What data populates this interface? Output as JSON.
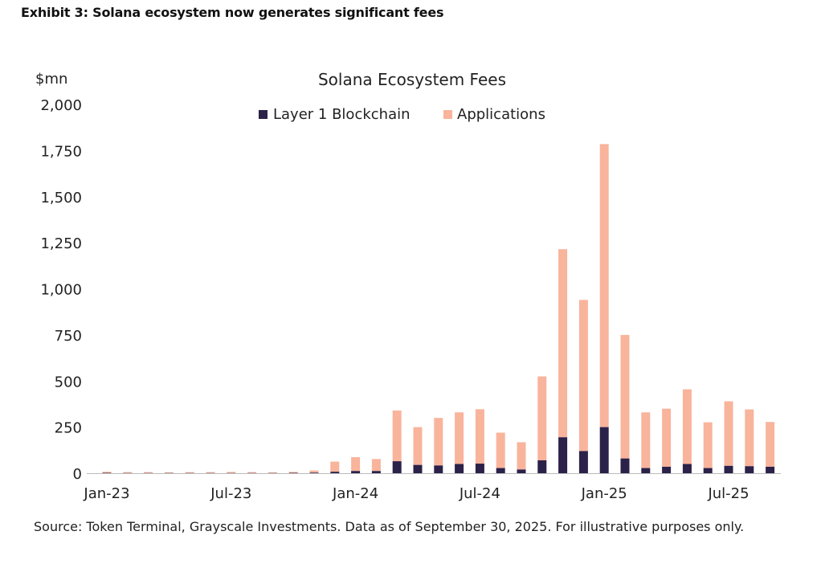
{
  "exhibit_title": "Exhibit 3: Solana ecosystem now generates significant fees",
  "footnote": "Source: Token Terminal, Grayscale Investments. Data as of September 30, 2025. For illustrative purposes only.",
  "colors": {
    "layer1": "#2b2149",
    "applications": "#f9b49c",
    "axis": "#bbbbbb"
  },
  "chart_data": {
    "type": "bar",
    "stacked": true,
    "title": "Solana Ecosystem Fees",
    "ylabel": "$mn",
    "xlabel": "",
    "ylim": [
      0,
      2000
    ],
    "yticks": [
      0,
      250,
      500,
      750,
      1000,
      1250,
      1500,
      1750,
      2000
    ],
    "ytick_labels": [
      "0",
      "250",
      "500",
      "750",
      "1,000",
      "1,250",
      "1,500",
      "1,750",
      "2,000"
    ],
    "xtick_labels": [
      {
        "label": "Jan-23",
        "index": 0
      },
      {
        "label": "Jul-23",
        "index": 6
      },
      {
        "label": "Jan-24",
        "index": 12
      },
      {
        "label": "Jul-24",
        "index": 18
      },
      {
        "label": "Jan-25",
        "index": 24
      },
      {
        "label": "Jul-25",
        "index": 30
      }
    ],
    "categories": [
      "Jan-23",
      "Feb-23",
      "Mar-23",
      "Apr-23",
      "May-23",
      "Jun-23",
      "Jul-23",
      "Aug-23",
      "Sep-23",
      "Oct-23",
      "Nov-23",
      "Dec-23",
      "Jan-24",
      "Feb-24",
      "Mar-24",
      "Apr-24",
      "May-24",
      "Jun-24",
      "Jul-24",
      "Aug-24",
      "Sep-24",
      "Oct-24",
      "Nov-24",
      "Dec-24",
      "Jan-25",
      "Feb-25",
      "Mar-25",
      "Apr-25",
      "May-25",
      "Jun-25",
      "Jul-25",
      "Aug-25",
      "Sep-25"
    ],
    "legend_position": "top-center",
    "series": [
      {
        "name": "Layer 1 Blockchain",
        "values": [
          2,
          1,
          1,
          1,
          1,
          1,
          1,
          1,
          1,
          2,
          3,
          8,
          12,
          12,
          65,
          45,
          42,
          50,
          52,
          28,
          20,
          70,
          195,
          120,
          250,
          80,
          28,
          35,
          50,
          28,
          40,
          38,
          35
        ]
      },
      {
        "name": "Applications",
        "values": [
          6,
          5,
          5,
          4,
          5,
          5,
          6,
          5,
          4,
          5,
          12,
          55,
          75,
          65,
          275,
          205,
          258,
          280,
          295,
          192,
          148,
          455,
          1020,
          820,
          1535,
          670,
          302,
          315,
          405,
          248,
          350,
          308,
          243
        ]
      }
    ]
  }
}
